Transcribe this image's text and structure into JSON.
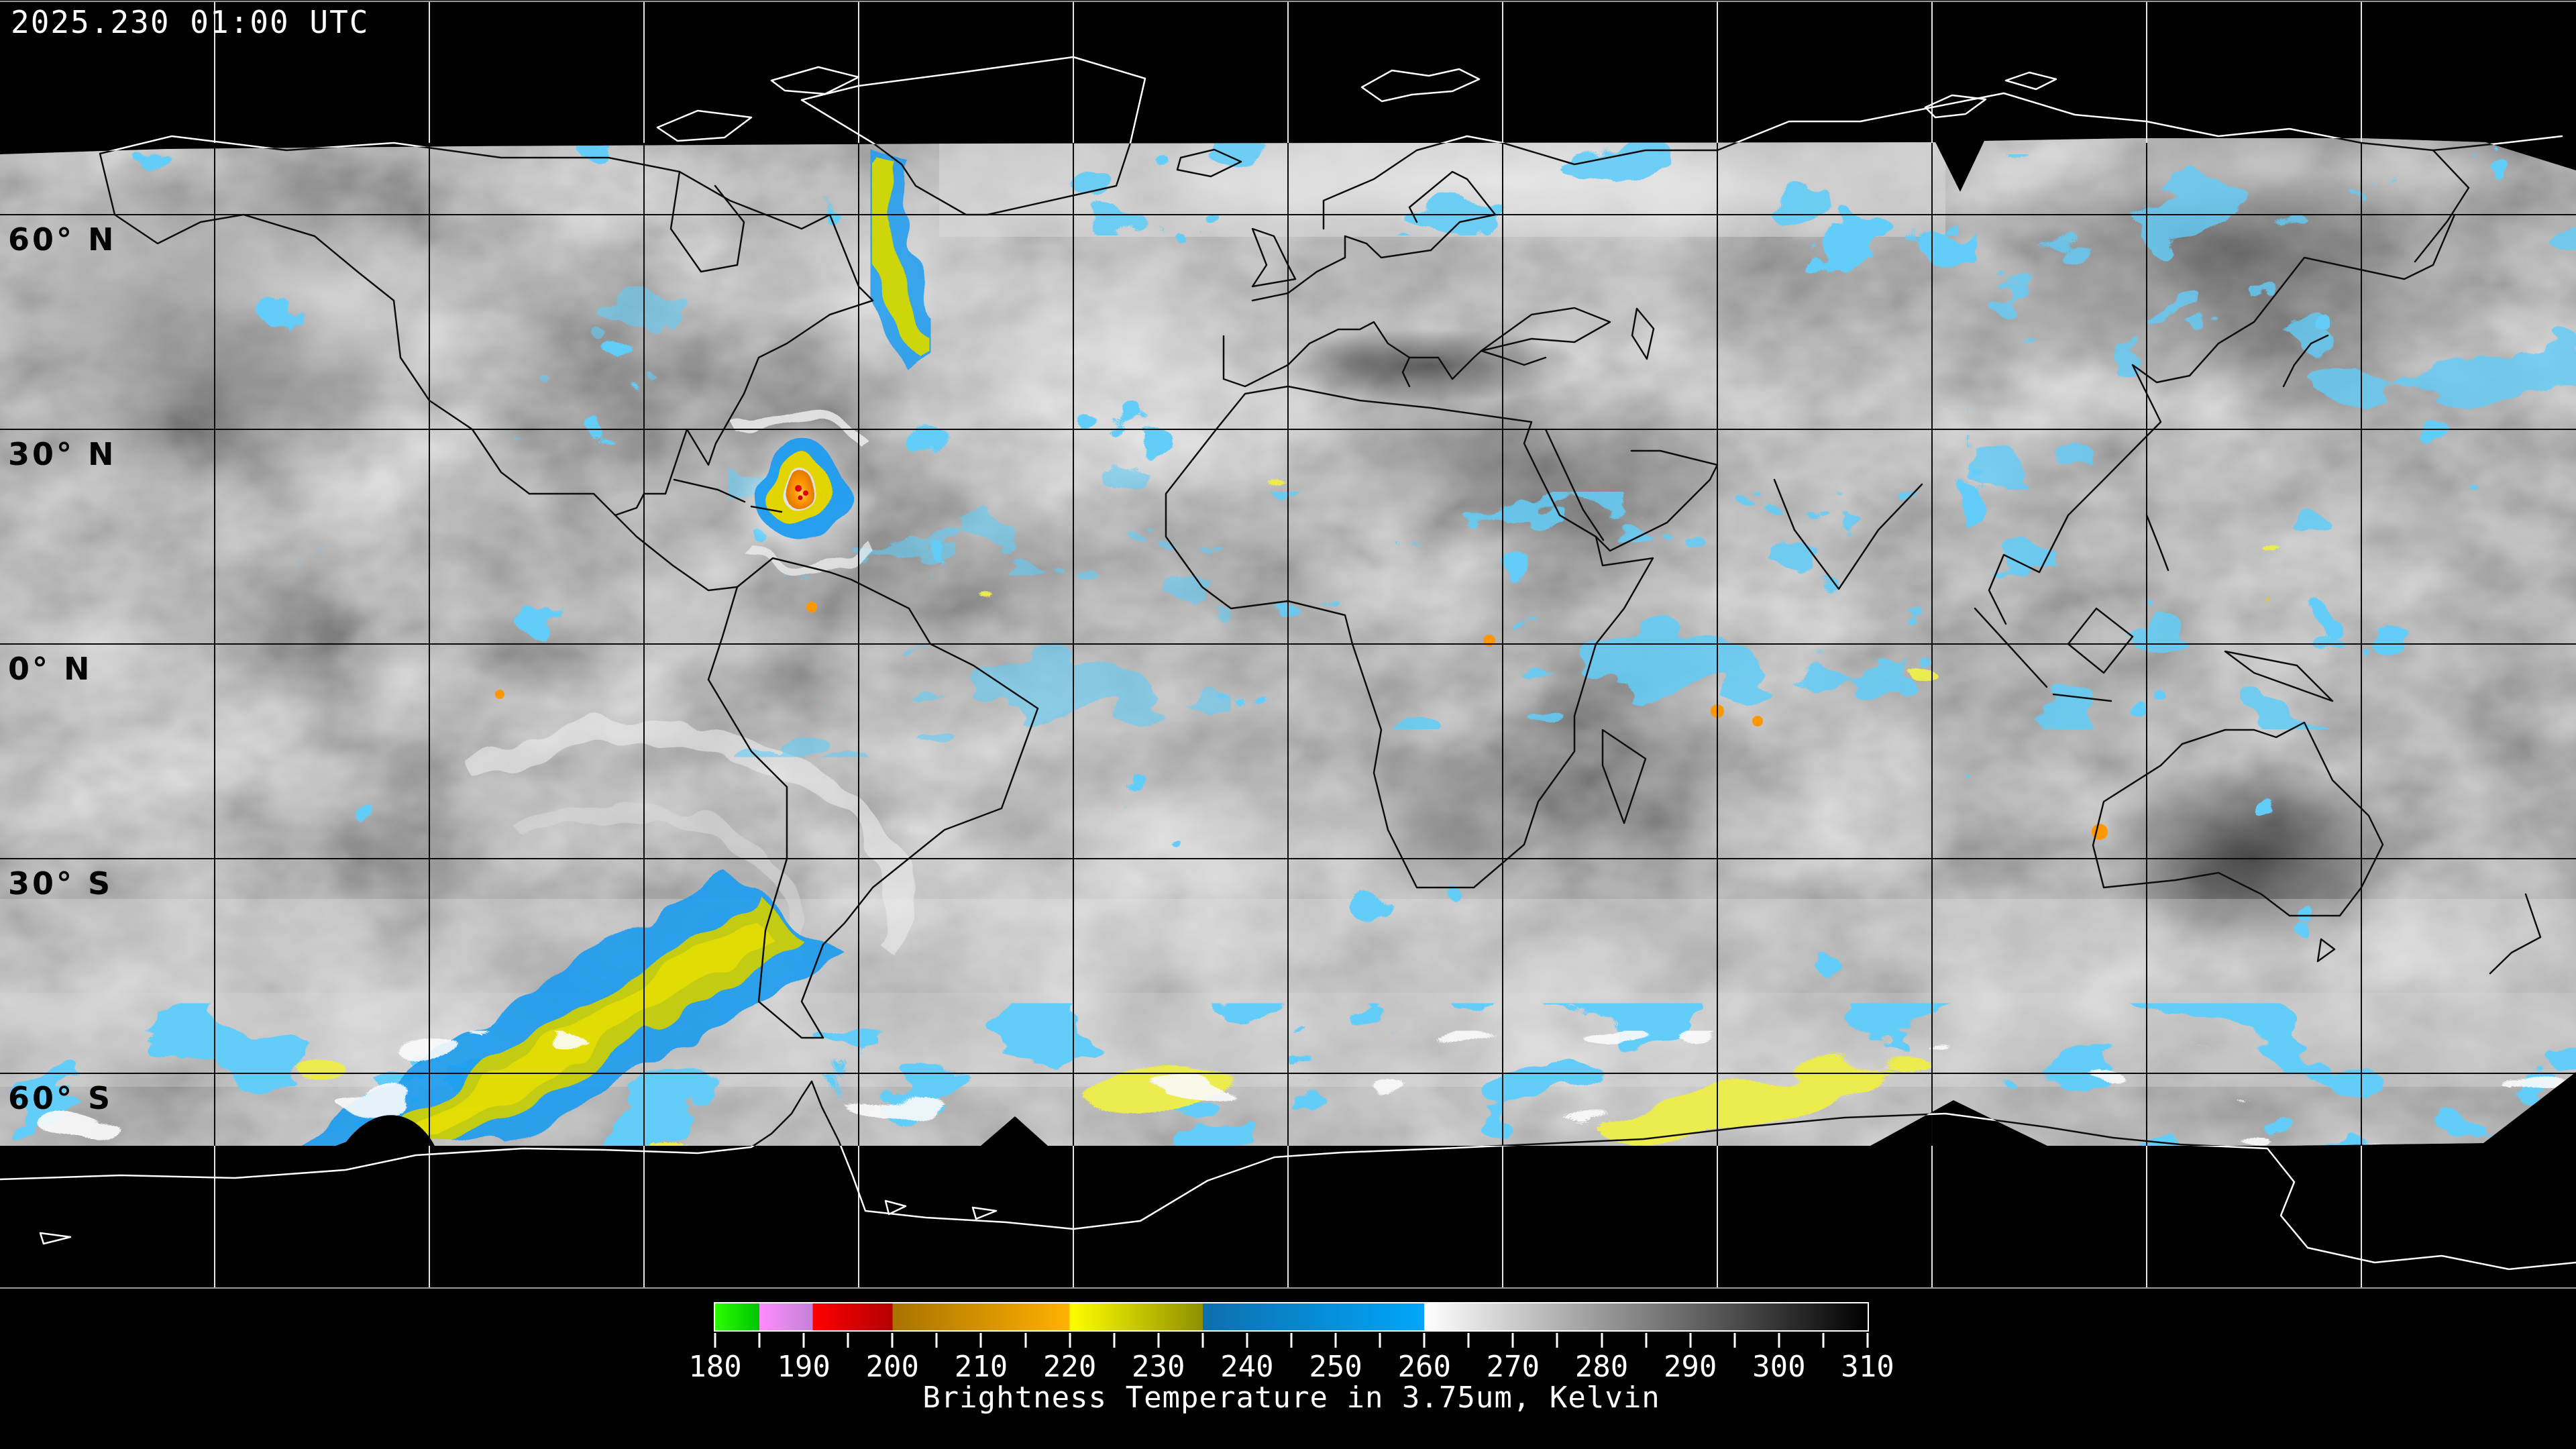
{
  "header": {
    "timestamp": "2025.230 01:00 UTC"
  },
  "map": {
    "latitude_labels": [
      "60° N",
      "30° N",
      "0° N",
      "30° S",
      "60° S"
    ],
    "grid_spacing_deg": 30,
    "enhancement_colors": {
      "green": "#00dd00",
      "violet": "#e080e0",
      "red": "#dd0000",
      "orange": "#e89800",
      "yellow": "#d6d600",
      "blue": "#1e9cf0",
      "cloud_gray": "#9a9a9a",
      "background": "#000000"
    }
  },
  "colorbar": {
    "title": "Brightness Temperature in 3.75um, Kelvin",
    "unit_min": 180,
    "unit_max": 310,
    "major_tick_step": 10,
    "minor_tick_step": 5,
    "tick_labels": [
      "180",
      "190",
      "200",
      "210",
      "220",
      "230",
      "240",
      "250",
      "260",
      "270",
      "280",
      "290",
      "300",
      "310"
    ],
    "segments": [
      {
        "from": 180,
        "to": 185,
        "color_start": "#2aff00",
        "color_end": "#00c400"
      },
      {
        "from": 185,
        "to": 191,
        "color_start": "#ff8cff",
        "color_end": "#c482d8"
      },
      {
        "from": 191,
        "to": 200,
        "color_start": "#ff0000",
        "color_end": "#b40000"
      },
      {
        "from": 200,
        "to": 220,
        "color_start": "#a87200",
        "color_end": "#ffb200"
      },
      {
        "from": 220,
        "to": 235,
        "color_start": "#ffff00",
        "color_end": "#8f8f00"
      },
      {
        "from": 235,
        "to": 260,
        "color_start": "#0d6fae",
        "color_end": "#00a6fa"
      },
      {
        "from": 260,
        "to": 310,
        "color_start": "#ffffff",
        "color_end": "#000000"
      }
    ]
  }
}
